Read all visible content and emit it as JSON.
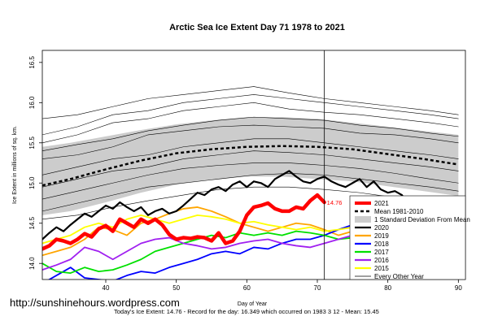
{
  "chart_data": {
    "type": "line",
    "title": "Arctic Sea Ice Extent Day 71 1978 to 2021",
    "xlabel": "Day of Year",
    "ylabel": "Ice Extent in millions of sq. km.",
    "xlim": [
      31,
      91
    ],
    "ylim": [
      13.8,
      16.65
    ],
    "x_ticks": [
      40,
      50,
      60,
      70,
      80,
      90
    ],
    "y_ticks": [
      14.0,
      14.5,
      15.0,
      15.5,
      16.0,
      16.5
    ],
    "grid": false,
    "legend_position": "bottom-right",
    "cursor": {
      "x": 71,
      "label": "14.76"
    },
    "footer": "Today's Ice Extent: 14.76 - Record for the day: 16.349 which occurred on 1983 3 12 - Mean: 15.45",
    "watermark": "http://sunshinehours.wordpress.com",
    "legend": [
      {
        "name": "2021",
        "color": "#ff0000",
        "style": "thick"
      },
      {
        "name": "Mean 1981-2010",
        "color": "#000000",
        "style": "dashed"
      },
      {
        "name": "1 Standard Deviation From Mean",
        "color": "#cccccc",
        "style": "band"
      },
      {
        "name": "2020",
        "color": "#000000",
        "style": "solid"
      },
      {
        "name": "2019",
        "color": "#ffa500",
        "style": "solid"
      },
      {
        "name": "2018",
        "color": "#0000ff",
        "style": "solid"
      },
      {
        "name": "2017",
        "color": "#00e000",
        "style": "solid"
      },
      {
        "name": "2016",
        "color": "#a020f0",
        "style": "solid"
      },
      {
        "name": "2015",
        "color": "#ffff00",
        "style": "solid"
      },
      {
        "name": "Every Other Year",
        "color": "#000000",
        "style": "thin"
      }
    ],
    "mean": {
      "x": [
        31,
        35,
        40,
        45,
        50,
        55,
        60,
        65,
        70,
        75,
        80,
        85,
        90
      ],
      "y": [
        14.97,
        15.05,
        15.17,
        15.28,
        15.37,
        15.42,
        15.45,
        15.46,
        15.45,
        15.42,
        15.36,
        15.3,
        15.23
      ]
    },
    "std_band": {
      "x": [
        31,
        35,
        40,
        45,
        50,
        55,
        60,
        65,
        70,
        75,
        80,
        85,
        90
      ],
      "upper": [
        15.45,
        15.5,
        15.58,
        15.66,
        15.73,
        15.78,
        15.82,
        15.82,
        15.8,
        15.75,
        15.7,
        15.65,
        15.6
      ],
      "lower": [
        14.6,
        14.65,
        14.76,
        14.88,
        14.98,
        15.04,
        15.08,
        15.08,
        15.05,
        15.02,
        14.96,
        14.9,
        14.84
      ]
    },
    "series": [
      {
        "name": "2021",
        "color": "#ff0000",
        "width": 4.5,
        "x": [
          31,
          32,
          33,
          34,
          35,
          36,
          37,
          38,
          39,
          40,
          41,
          42,
          43,
          44,
          45,
          46,
          47,
          48,
          49,
          50,
          51,
          52,
          53,
          54,
          55,
          56,
          57,
          58,
          59,
          60,
          61,
          62,
          63,
          64,
          65,
          66,
          67,
          68,
          69,
          70,
          71
        ],
        "y": [
          14.18,
          14.22,
          14.3,
          14.28,
          14.25,
          14.3,
          14.37,
          14.33,
          14.43,
          14.47,
          14.4,
          14.55,
          14.5,
          14.45,
          14.55,
          14.5,
          14.55,
          14.48,
          14.36,
          14.3,
          14.32,
          14.31,
          14.33,
          14.32,
          14.28,
          14.38,
          14.25,
          14.28,
          14.4,
          14.6,
          14.7,
          14.72,
          14.75,
          14.68,
          14.65,
          14.65,
          14.7,
          14.68,
          14.78,
          14.85,
          14.76
        ]
      },
      {
        "name": "2020",
        "color": "#000000",
        "width": 2.2,
        "x": [
          31,
          32,
          33,
          34,
          35,
          36,
          37,
          38,
          39,
          40,
          41,
          42,
          43,
          44,
          45,
          46,
          47,
          48,
          49,
          50,
          51,
          52,
          53,
          54,
          55,
          56,
          57,
          58,
          59,
          60,
          61,
          62,
          63,
          64,
          65,
          66,
          67,
          68,
          69,
          70,
          71,
          72,
          73,
          74,
          75,
          76,
          77,
          78,
          79,
          80,
          81,
          82,
          83,
          84,
          85,
          86,
          87,
          88,
          89,
          90
        ],
        "y": [
          14.3,
          14.38,
          14.45,
          14.4,
          14.48,
          14.55,
          14.62,
          14.58,
          14.65,
          14.72,
          14.68,
          14.76,
          14.7,
          14.65,
          14.7,
          14.6,
          14.65,
          14.68,
          14.62,
          14.65,
          14.72,
          14.8,
          14.88,
          14.85,
          14.92,
          14.95,
          14.9,
          14.98,
          15.02,
          14.95,
          15.02,
          15.0,
          14.95,
          15.05,
          15.1,
          15.15,
          15.08,
          15.02,
          15.0,
          15.05,
          15.08,
          15.02,
          14.98,
          14.95,
          15.0,
          15.05,
          14.95,
          15.02,
          14.92,
          14.88,
          14.9,
          14.85,
          14.72,
          14.58,
          14.45,
          14.38,
          14.32,
          14.28,
          14.2,
          14.25
        ]
      },
      {
        "name": "2019",
        "color": "#ffa500",
        "width": 1.8,
        "x": [
          31,
          33,
          35,
          37,
          39,
          41,
          43,
          45,
          47,
          49,
          51,
          53,
          55,
          57,
          59,
          61,
          63,
          65,
          67,
          69,
          71,
          73,
          75,
          77,
          79,
          81,
          83,
          85,
          87,
          89,
          90
        ],
        "y": [
          14.1,
          14.15,
          14.2,
          14.3,
          14.45,
          14.42,
          14.35,
          14.5,
          14.55,
          14.62,
          14.68,
          14.7,
          14.65,
          14.58,
          14.5,
          14.45,
          14.4,
          14.45,
          14.5,
          14.48,
          14.42,
          14.35,
          14.4,
          14.32,
          14.3,
          14.2,
          14.25,
          14.2,
          14.15,
          14.1,
          14.05
        ]
      },
      {
        "name": "2018",
        "color": "#0000ff",
        "width": 1.8,
        "x": [
          31,
          33,
          35,
          37,
          39,
          41,
          43,
          45,
          47,
          49,
          51,
          53,
          55,
          57,
          59,
          61,
          63,
          65,
          67,
          69,
          71,
          73,
          75,
          77,
          79,
          81,
          83,
          85,
          87,
          89,
          90
        ],
        "y": [
          13.75,
          13.85,
          13.95,
          13.82,
          13.8,
          13.78,
          13.85,
          13.9,
          13.88,
          13.95,
          14.0,
          14.05,
          14.12,
          14.15,
          14.12,
          14.2,
          14.18,
          14.25,
          14.3,
          14.3,
          14.35,
          14.42,
          14.48,
          14.45,
          14.4,
          14.3,
          14.28,
          14.3,
          14.25,
          14.28,
          14.25
        ]
      },
      {
        "name": "2017",
        "color": "#00e000",
        "width": 1.8,
        "x": [
          31,
          33,
          35,
          37,
          39,
          41,
          43,
          45,
          47,
          49,
          51,
          53,
          55,
          57,
          59,
          61,
          63,
          65,
          67,
          69,
          71,
          73,
          75,
          77,
          79,
          81,
          83,
          85,
          87,
          89,
          90
        ],
        "y": [
          14.0,
          13.9,
          13.88,
          13.95,
          13.9,
          13.92,
          13.98,
          14.05,
          14.15,
          14.2,
          14.25,
          14.3,
          14.35,
          14.32,
          14.38,
          14.35,
          14.38,
          14.35,
          14.4,
          14.38,
          14.35,
          14.3,
          14.32,
          14.28,
          14.25,
          14.2,
          14.22,
          14.18,
          14.15,
          14.2,
          14.2
        ]
      },
      {
        "name": "2016",
        "color": "#a020f0",
        "width": 1.8,
        "x": [
          31,
          33,
          35,
          37,
          39,
          41,
          43,
          45,
          47,
          49,
          51,
          53,
          55,
          57,
          59,
          61,
          63,
          65,
          67,
          69,
          71,
          73,
          75,
          77,
          79,
          81,
          83,
          85,
          87,
          89,
          90
        ],
        "y": [
          13.92,
          13.98,
          14.05,
          14.2,
          14.15,
          14.05,
          14.15,
          14.25,
          14.3,
          14.32,
          14.25,
          14.22,
          14.18,
          14.2,
          14.25,
          14.28,
          14.3,
          14.25,
          14.22,
          14.2,
          14.25,
          14.3,
          14.35,
          14.3,
          14.28,
          14.25,
          14.3,
          14.28,
          14.22,
          14.2,
          14.22
        ]
      },
      {
        "name": "2015",
        "color": "#ffff00",
        "width": 1.8,
        "x": [
          31,
          33,
          35,
          37,
          39,
          41,
          43,
          45,
          47,
          49,
          51,
          53,
          55,
          57,
          59,
          61,
          63,
          65,
          67,
          69,
          71,
          73,
          75,
          77,
          79,
          81,
          83,
          85,
          87,
          89,
          90
        ],
        "y": [
          14.25,
          14.3,
          14.35,
          14.45,
          14.5,
          14.45,
          14.55,
          14.6,
          14.55,
          14.5,
          14.55,
          14.6,
          14.58,
          14.55,
          14.5,
          14.52,
          14.48,
          14.45,
          14.42,
          14.45,
          14.4,
          14.42,
          14.45,
          14.42,
          14.45,
          14.38,
          14.35,
          14.3,
          14.32,
          14.28,
          14.25
        ]
      },
      {
        "name": "Every Other Year",
        "color": "#000000",
        "width": 0.6,
        "x": [
          31,
          36,
          41,
          46,
          51,
          56,
          61,
          66,
          71,
          76,
          81,
          86,
          90
        ],
        "y": [
          15.8,
          15.85,
          15.95,
          16.05,
          16.1,
          16.15,
          16.2,
          16.12,
          16.05,
          16.0,
          15.95,
          15.9,
          15.85
        ]
      },
      {
        "color": "#000000",
        "width": 0.6,
        "x": [
          31,
          36,
          41,
          46,
          51,
          56,
          61,
          66,
          71,
          76,
          81,
          86,
          90
        ],
        "y": [
          15.5,
          15.6,
          15.75,
          15.8,
          15.9,
          15.95,
          16.0,
          15.92,
          15.88,
          15.85,
          15.8,
          15.75,
          15.7
        ]
      },
      {
        "color": "#000000",
        "width": 0.6,
        "x": [
          31,
          36,
          41,
          46,
          51,
          56,
          61,
          66,
          71,
          76,
          81,
          86,
          90
        ],
        "y": [
          15.3,
          15.35,
          15.45,
          15.6,
          15.65,
          15.7,
          15.72,
          15.7,
          15.68,
          15.62,
          15.6,
          15.55,
          15.5
        ]
      },
      {
        "color": "#000000",
        "width": 0.6,
        "x": [
          31,
          36,
          41,
          46,
          51,
          56,
          61,
          66,
          71,
          76,
          81,
          86,
          90
        ],
        "y": [
          15.1,
          15.2,
          15.3,
          15.35,
          15.45,
          15.5,
          15.55,
          15.55,
          15.5,
          15.45,
          15.4,
          15.35,
          15.3
        ]
      },
      {
        "color": "#000000",
        "width": 0.6,
        "x": [
          31,
          36,
          41,
          46,
          51,
          56,
          61,
          66,
          71,
          76,
          81,
          86,
          90
        ],
        "y": [
          14.95,
          15.05,
          15.15,
          15.2,
          15.3,
          15.35,
          15.4,
          15.38,
          15.35,
          15.3,
          15.25,
          15.2,
          15.15
        ]
      },
      {
        "color": "#000000",
        "width": 0.6,
        "x": [
          31,
          36,
          41,
          46,
          51,
          56,
          61,
          66,
          71,
          76,
          81,
          86,
          90
        ],
        "y": [
          14.8,
          14.9,
          15.0,
          15.1,
          15.18,
          15.22,
          15.25,
          15.25,
          15.22,
          15.18,
          15.12,
          15.05,
          15.0
        ]
      },
      {
        "color": "#000000",
        "width": 0.6,
        "x": [
          31,
          36,
          41,
          46,
          51,
          56,
          61,
          66,
          71,
          76,
          81,
          86,
          90
        ],
        "y": [
          14.65,
          14.75,
          14.85,
          14.95,
          15.0,
          15.05,
          15.1,
          15.12,
          15.1,
          15.05,
          15.0,
          14.95,
          14.9
        ]
      },
      {
        "color": "#000000",
        "width": 0.6,
        "x": [
          31,
          36,
          41,
          46,
          51,
          56,
          61,
          66,
          71,
          76,
          81,
          86,
          90
        ],
        "y": [
          14.55,
          14.6,
          14.7,
          14.78,
          14.85,
          14.92,
          14.95,
          14.95,
          14.92,
          14.88,
          14.82,
          14.78,
          14.72
        ]
      },
      {
        "color": "#000000",
        "width": 0.6,
        "x": [
          31,
          36,
          41,
          46,
          51,
          56,
          61,
          66,
          71,
          76,
          81,
          86,
          90
        ],
        "y": [
          15.4,
          15.48,
          15.55,
          15.65,
          15.72,
          15.78,
          15.82,
          15.8,
          15.78,
          15.72,
          15.68,
          15.62,
          15.58
        ]
      },
      {
        "color": "#000000",
        "width": 0.6,
        "x": [
          31,
          36,
          41,
          46,
          51,
          56,
          61,
          66,
          71,
          76,
          81,
          86,
          90
        ],
        "y": [
          15.6,
          15.7,
          15.85,
          15.9,
          16.0,
          16.05,
          16.1,
          16.05,
          16.0,
          15.95,
          15.9,
          15.85,
          15.8
        ]
      }
    ]
  }
}
